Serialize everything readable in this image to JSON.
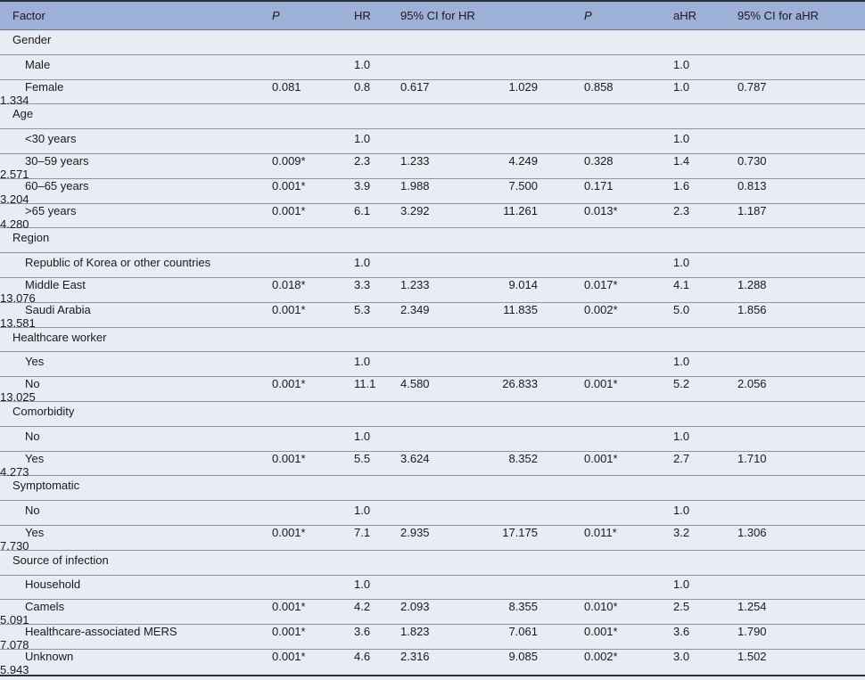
{
  "header": [
    "Factor",
    "P",
    "HR",
    "95% CI for HR",
    "P",
    "aHR",
    "95% CI for aHR"
  ],
  "rows": [
    {
      "type": "group",
      "label": "Gender"
    },
    {
      "type": "item",
      "label": "Male",
      "p": "",
      "hr": "1.0",
      "lo": "",
      "hi": "",
      "p2": "",
      "ahr": "1.0",
      "alo": "",
      "ahi": ""
    },
    {
      "type": "item",
      "label": "Female",
      "p": "0.081",
      "hr": "0.8",
      "lo": "0.617",
      "hi": "1.029",
      "p2": "0.858",
      "ahr": "1.0",
      "alo": "0.787",
      "ahi": "1.334"
    },
    {
      "type": "group",
      "label": "Age"
    },
    {
      "type": "item",
      "label": "<30 years",
      "p": "",
      "hr": "1.0",
      "lo": "",
      "hi": "",
      "p2": "",
      "ahr": "1.0",
      "alo": "",
      "ahi": ""
    },
    {
      "type": "item",
      "label": "30–59 years",
      "p": "0.009*",
      "hr": "2.3",
      "lo": "1.233",
      "hi": "4.249",
      "p2": "0.328",
      "ahr": "1.4",
      "alo": "0.730",
      "ahi": "2.571"
    },
    {
      "type": "item",
      "label": "60–65 years",
      "p": "0.001*",
      "hr": "3.9",
      "lo": "1.988",
      "hi": "7.500",
      "p2": "0.171",
      "ahr": "1.6",
      "alo": "0.813",
      "ahi": "3.204"
    },
    {
      "type": "item",
      "label": ">65 years",
      "p": "0.001*",
      "hr": "6.1",
      "lo": "3.292",
      "hi": "11.261",
      "p2": "0.013*",
      "ahr": "2.3",
      "alo": "1.187",
      "ahi": "4.280"
    },
    {
      "type": "group",
      "label": "Region"
    },
    {
      "type": "item",
      "label": "Republic of Korea or other countries",
      "p": "",
      "hr": "1.0",
      "lo": "",
      "hi": "",
      "p2": "",
      "ahr": "1.0",
      "alo": "",
      "ahi": ""
    },
    {
      "type": "item",
      "label": "Middle East",
      "p": "0.018*",
      "hr": "3.3",
      "lo": "1.233",
      "hi": "9.014",
      "p2": "0.017*",
      "ahr": "4.1",
      "alo": "1.288",
      "ahi": "13.076"
    },
    {
      "type": "item",
      "label": "Saudi Arabia",
      "p": "0.001*",
      "hr": "5.3",
      "lo": "2.349",
      "hi": "11.835",
      "p2": "0.002*",
      "ahr": "5.0",
      "alo": "1.856",
      "ahi": "13.581"
    },
    {
      "type": "group",
      "label": "Healthcare worker"
    },
    {
      "type": "item",
      "label": "Yes",
      "p": "",
      "hr": "1.0",
      "lo": "",
      "hi": "",
      "p2": "",
      "ahr": "1.0",
      "alo": "",
      "ahi": ""
    },
    {
      "type": "item",
      "label": "No",
      "p": "0.001*",
      "hr": "11.1",
      "lo": "4.580",
      "hi": "26.833",
      "p2": "0.001*",
      "ahr": "5.2",
      "alo": "2.056",
      "ahi": "13.025"
    },
    {
      "type": "group",
      "label": "Comorbidity"
    },
    {
      "type": "item",
      "label": "No",
      "p": "",
      "hr": "1.0",
      "lo": "",
      "hi": "",
      "p2": "",
      "ahr": "1.0",
      "alo": "",
      "ahi": ""
    },
    {
      "type": "item",
      "label": "Yes",
      "p": "0.001*",
      "hr": "5.5",
      "lo": "3.624",
      "hi": "8.352",
      "p2": "0.001*",
      "ahr": "2.7",
      "alo": "1.710",
      "ahi": "4.273"
    },
    {
      "type": "group",
      "label": "Symptomatic"
    },
    {
      "type": "item",
      "label": "No",
      "p": "",
      "hr": "1.0",
      "lo": "",
      "hi": "",
      "p2": "",
      "ahr": "1.0",
      "alo": "",
      "ahi": ""
    },
    {
      "type": "item",
      "label": "Yes",
      "p": "0.001*",
      "hr": "7.1",
      "lo": "2.935",
      "hi": "17.175",
      "p2": "0.011*",
      "ahr": "3.2",
      "alo": "1.306",
      "ahi": "7.730"
    },
    {
      "type": "group",
      "label": "Source of infection"
    },
    {
      "type": "item",
      "label": "Household",
      "p": "",
      "hr": "1.0",
      "lo": "",
      "hi": "",
      "p2": "",
      "ahr": "1.0",
      "alo": "",
      "ahi": ""
    },
    {
      "type": "item",
      "label": "Camels",
      "p": "0.001*",
      "hr": "4.2",
      "lo": "2.093",
      "hi": "8.355",
      "p2": "0.010*",
      "ahr": "2.5",
      "alo": "1.254",
      "ahi": "5.091"
    },
    {
      "type": "item",
      "label": "Healthcare-associated MERS",
      "p": "0.001*",
      "hr": "3.6",
      "lo": "1.823",
      "hi": "7.061",
      "p2": "0.001*",
      "ahr": "3.6",
      "alo": "1.790",
      "ahi": "7.078"
    },
    {
      "type": "item",
      "label": "Unknown",
      "p": "0.001*",
      "hr": "4.6",
      "lo": "2.316",
      "hi": "9.085",
      "p2": "0.002*",
      "ahr": "3.0",
      "alo": "1.502",
      "ahi": "5.943"
    }
  ],
  "colors": {
    "header_bg": "#9cb0d8",
    "body_bg": "#e8ecf5",
    "rule": "#8d95a4"
  }
}
